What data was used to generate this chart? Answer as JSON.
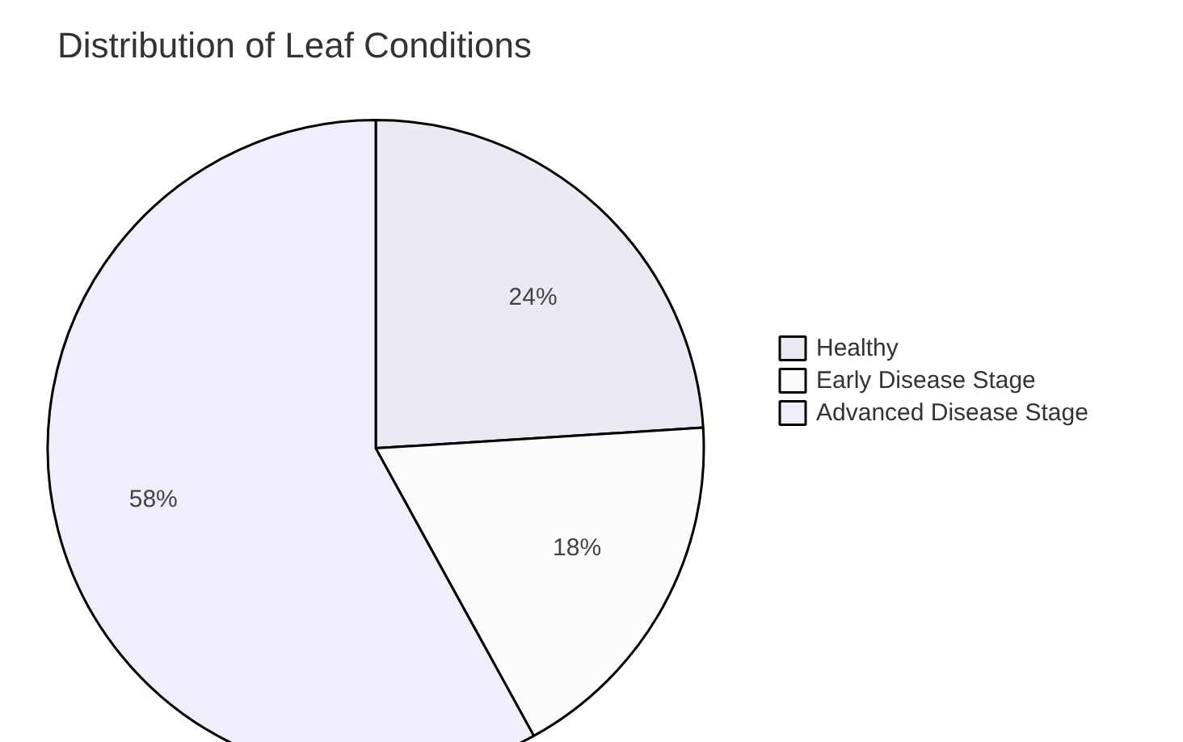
{
  "chart_data": {
    "type": "pie",
    "title": "Distribution of Leaf Conditions",
    "categories": [
      "Healthy",
      "Early Disease Stage",
      "Advanced Disease Stage"
    ],
    "values": [
      24,
      18,
      58
    ],
    "colors": [
      "#ebeaf2",
      "#fcfcfc",
      "#efeffb"
    ],
    "value_labels": [
      "24%",
      "18%",
      "58%"
    ],
    "legend": "right"
  }
}
